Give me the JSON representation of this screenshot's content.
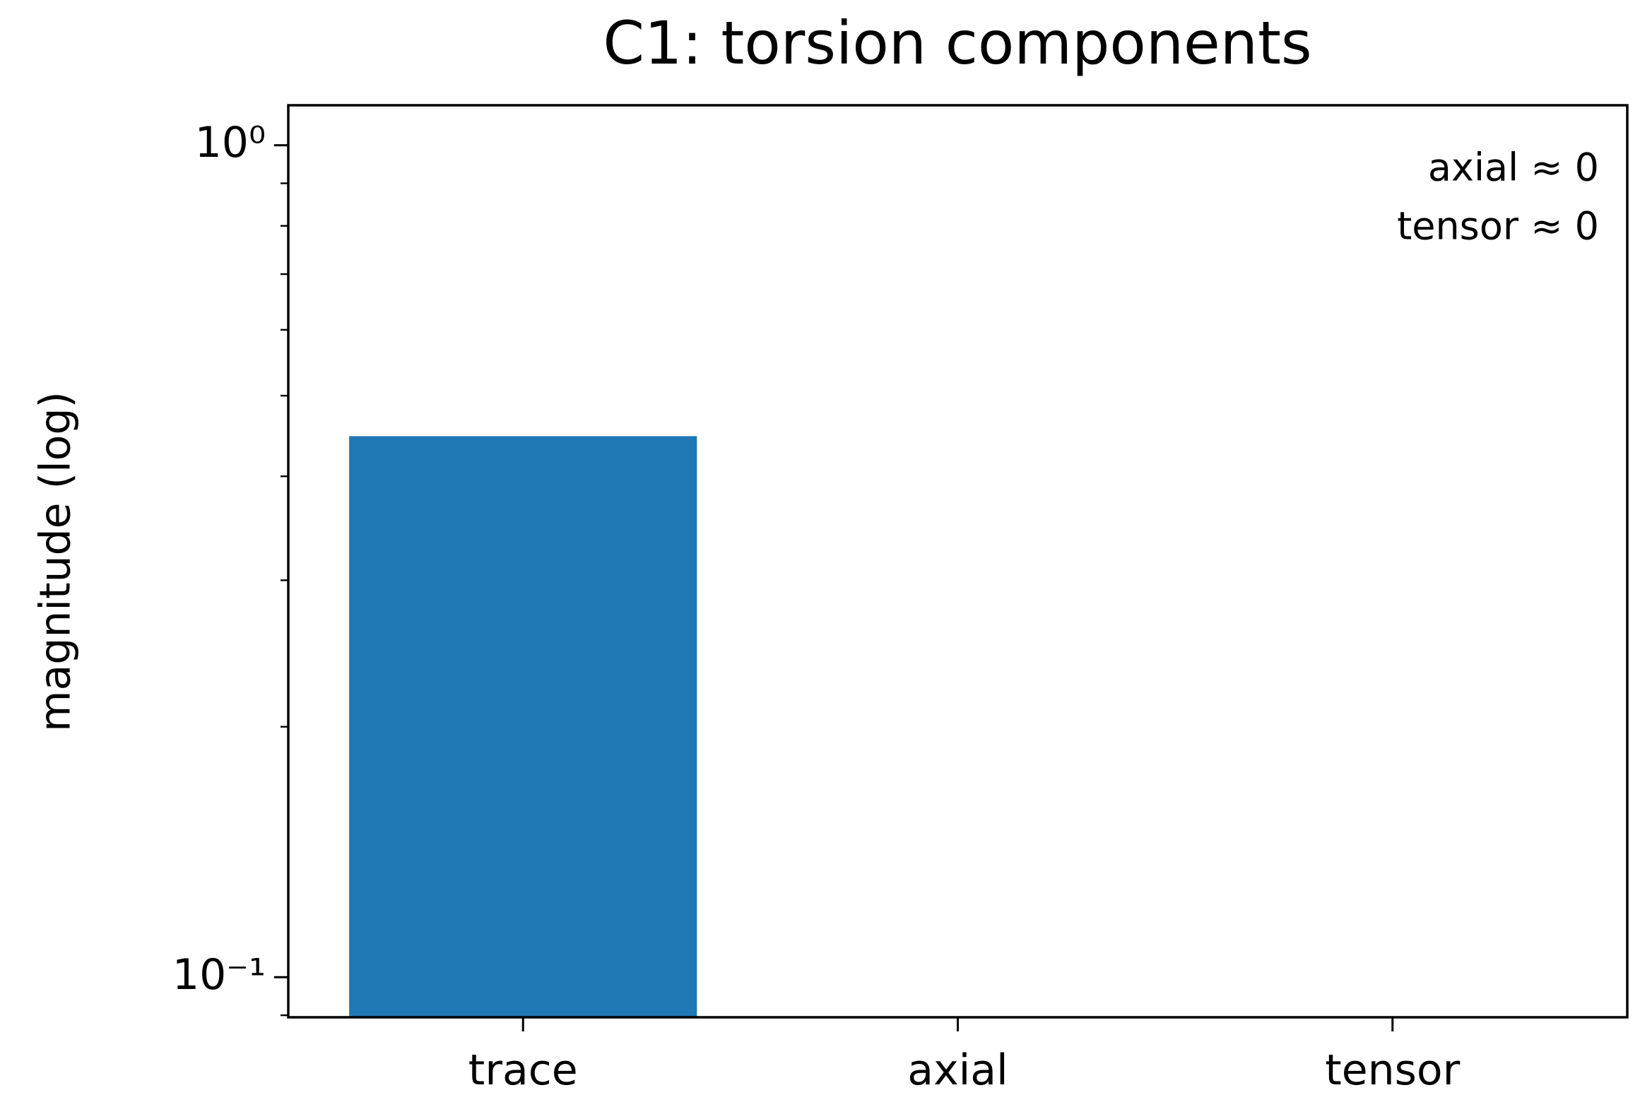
{
  "chart_data": {
    "type": "bar",
    "title": "C1: torsion components",
    "y_label": "magnitude (log)",
    "categories": [
      "trace",
      "axial",
      "tensor"
    ],
    "values": [
      0.447,
      0,
      0
    ],
    "color": "#1f77b4",
    "y_scale": "log",
    "ylim": [
      0.0895,
      1.117
    ],
    "yticks": [
      {
        "value": 1,
        "label": "10⁰"
      },
      {
        "value": 0.1,
        "label": "10⁻¹"
      }
    ],
    "minor_yticks": [
      0.09,
      0.2,
      0.3,
      0.4,
      0.5,
      0.6,
      0.7,
      0.8,
      0.9
    ],
    "annotations": [
      "axial ≈ 0",
      "tensor ≈ 0"
    ]
  }
}
